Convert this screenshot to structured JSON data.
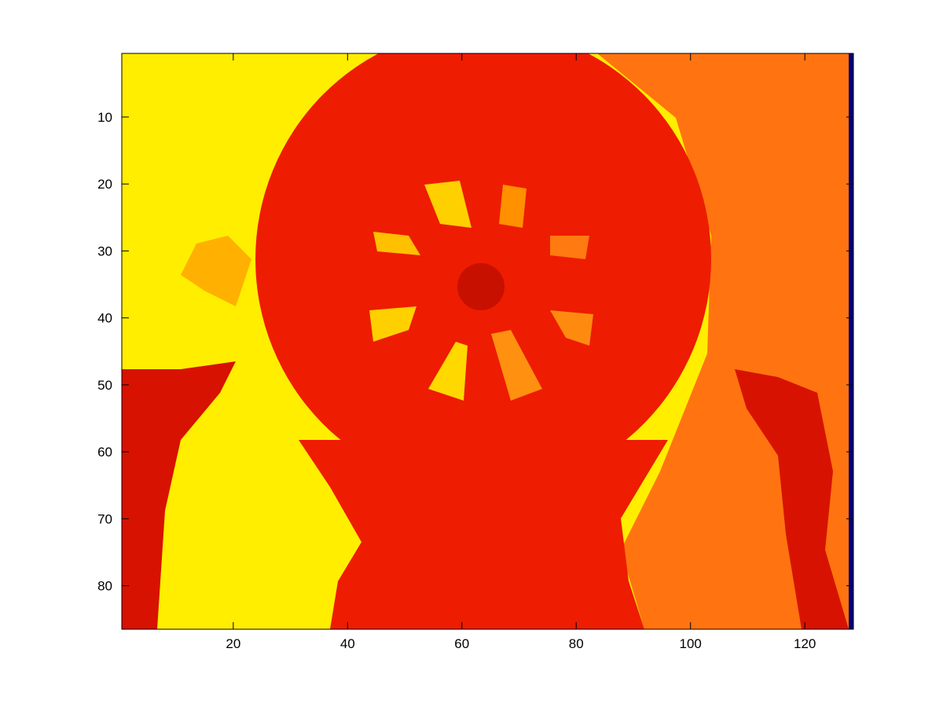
{
  "chart_data": {
    "type": "image",
    "xlim": [
      0.5,
      128.5
    ],
    "ylim": [
      0.5,
      86.5
    ],
    "y_reversed": true,
    "xticks": [
      20,
      40,
      60,
      80,
      100,
      120
    ],
    "yticks": [
      10,
      20,
      30,
      40,
      50,
      60,
      70,
      80
    ]
  }
}
